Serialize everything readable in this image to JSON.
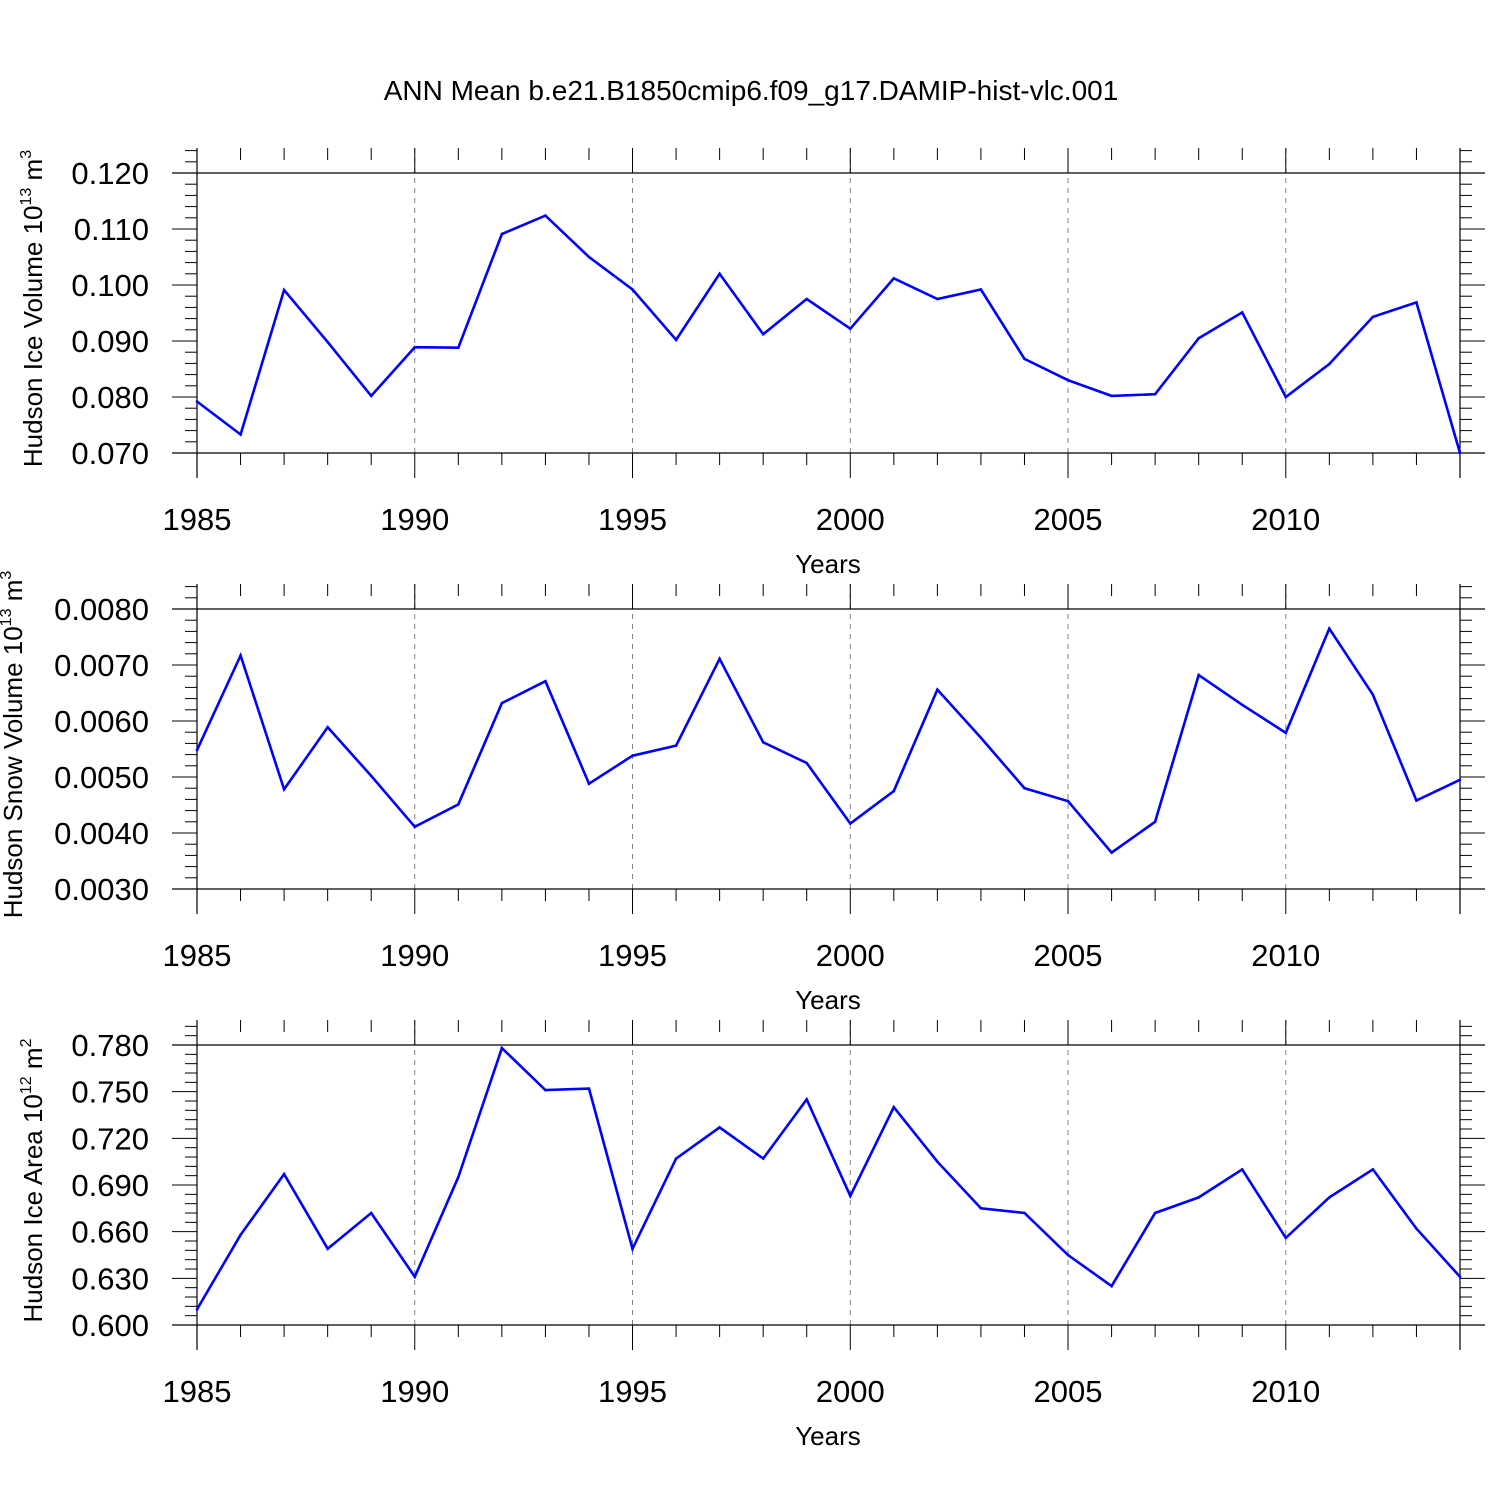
{
  "title": "ANN Mean b.e21.B1850cmip6.f09_g17.DAMIP-hist-vlc.001",
  "colors": {
    "line": "#0000ff",
    "axis": "#000000",
    "grid": "#808080"
  },
  "chart_data": [
    {
      "type": "line",
      "ylabel": "Hudson Ice Volume",
      "ylabel_unit": "10",
      "ylabel_exp": "13",
      "ylabel_unit2": " m",
      "ylabel_exp2": "3",
      "xlabel": "Years",
      "xlim": [
        1985,
        2014
      ],
      "ylim": [
        0.07,
        0.12
      ],
      "yticks": [
        0.07,
        0.08,
        0.09,
        0.1,
        0.11,
        0.12
      ],
      "ytick_labels": [
        "0.070",
        "0.080",
        "0.090",
        "0.100",
        "0.110",
        "0.120"
      ],
      "xticks": [
        1985,
        1990,
        1995,
        2000,
        2005,
        2010
      ],
      "xtick_labels": [
        "1985",
        "1990",
        "1995",
        "2000",
        "2005",
        "2010"
      ],
      "x": [
        1985,
        1986,
        1987,
        1988,
        1989,
        1990,
        1991,
        1992,
        1993,
        1994,
        1995,
        1996,
        1997,
        1998,
        1999,
        2000,
        2001,
        2002,
        2003,
        2004,
        2005,
        2006,
        2007,
        2008,
        2009,
        2010,
        2011,
        2012,
        2013,
        2014
      ],
      "values": [
        0.0792,
        0.0733,
        0.0991,
        0.0898,
        0.0802,
        0.0889,
        0.0888,
        0.1091,
        0.1124,
        0.105,
        0.0992,
        0.0902,
        0.102,
        0.0912,
        0.0975,
        0.0922,
        0.1012,
        0.0975,
        0.0992,
        0.0868,
        0.083,
        0.0802,
        0.0805,
        0.0905,
        0.0951,
        0.08,
        0.0859,
        0.0943,
        0.0969,
        0.07
      ]
    },
    {
      "type": "line",
      "ylabel": "Hudson Snow Volume",
      "ylabel_unit": "10",
      "ylabel_exp": "13",
      "ylabel_unit2": " m",
      "ylabel_exp2": "3",
      "xlabel": "Years",
      "xlim": [
        1985,
        2014
      ],
      "ylim": [
        0.003,
        0.008
      ],
      "yticks": [
        0.003,
        0.004,
        0.005,
        0.006,
        0.007,
        0.008
      ],
      "ytick_labels": [
        "0.0030",
        "0.0040",
        "0.0050",
        "0.0060",
        "0.0070",
        "0.0080"
      ],
      "xticks": [
        1985,
        1990,
        1995,
        2000,
        2005,
        2010
      ],
      "xtick_labels": [
        "1985",
        "1990",
        "1995",
        "2000",
        "2005",
        "2010"
      ],
      "x": [
        1985,
        1986,
        1987,
        1988,
        1989,
        1990,
        1991,
        1992,
        1993,
        1994,
        1995,
        1996,
        1997,
        1998,
        1999,
        2000,
        2001,
        2002,
        2003,
        2004,
        2005,
        2006,
        2007,
        2008,
        2009,
        2010,
        2011,
        2012,
        2013,
        2014
      ],
      "values": [
        0.00548,
        0.00717,
        0.00478,
        0.00589,
        0.00502,
        0.00411,
        0.00451,
        0.00632,
        0.00671,
        0.00488,
        0.00538,
        0.00556,
        0.00711,
        0.00562,
        0.00525,
        0.00417,
        0.00475,
        0.00656,
        0.0057,
        0.0048,
        0.00457,
        0.00365,
        0.0042,
        0.00682,
        0.00629,
        0.00579,
        0.00765,
        0.00647,
        0.00458,
        0.00495
      ]
    },
    {
      "type": "line",
      "ylabel": "Hudson Ice Area",
      "ylabel_unit": "10",
      "ylabel_exp": "12",
      "ylabel_unit2": " m",
      "ylabel_exp2": "2",
      "xlabel": "Years",
      "xlim": [
        1985,
        2014
      ],
      "ylim": [
        0.6,
        0.78
      ],
      "yticks": [
        0.6,
        0.63,
        0.66,
        0.69,
        0.72,
        0.75,
        0.78
      ],
      "ytick_labels": [
        "0.600",
        "0.630",
        "0.660",
        "0.690",
        "0.720",
        "0.750",
        "0.780"
      ],
      "xticks": [
        1985,
        1990,
        1995,
        2000,
        2005,
        2010
      ],
      "xtick_labels": [
        "1985",
        "1990",
        "1995",
        "2000",
        "2005",
        "2010"
      ],
      "x": [
        1985,
        1986,
        1987,
        1988,
        1989,
        1990,
        1991,
        1992,
        1993,
        1994,
        1995,
        1996,
        1997,
        1998,
        1999,
        2000,
        2001,
        2002,
        2003,
        2004,
        2005,
        2006,
        2007,
        2008,
        2009,
        2010,
        2011,
        2012,
        2013,
        2014
      ],
      "values": [
        0.61,
        0.658,
        0.697,
        0.649,
        0.672,
        0.631,
        0.695,
        0.778,
        0.751,
        0.752,
        0.649,
        0.707,
        0.727,
        0.707,
        0.745,
        0.683,
        0.74,
        0.705,
        0.675,
        0.672,
        0.645,
        0.625,
        0.672,
        0.682,
        0.7,
        0.656,
        0.682,
        0.7,
        0.662,
        0.631
      ]
    }
  ]
}
